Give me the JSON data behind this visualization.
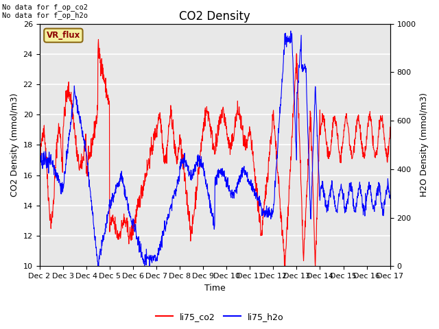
{
  "title": "CO2 Density",
  "xlabel": "Time",
  "ylabel_left": "CO2 Density (mmol/m3)",
  "ylabel_right": "H2O Density (mmol/m3)",
  "ylim_left": [
    10,
    26
  ],
  "ylim_right": [
    0,
    1000
  ],
  "legend_labels": [
    "li75_co2",
    "li75_h2o"
  ],
  "legend_colors": [
    "red",
    "blue"
  ],
  "top_left_text": "No data for f_op_co2\nNo data for f_op_h2o",
  "vr_flux_label": "VR_flux",
  "background_color": "#e8e8e8",
  "xtick_labels": [
    "Dec 2",
    "Dec 3",
    "Dec 4",
    "Dec 5",
    "Dec 6",
    "Dec 7",
    "Dec 8",
    "Dec 9",
    "Dec 10",
    "Dec 11",
    "Dec 12",
    "Dec 13",
    "Dec 14",
    "Dec 15",
    "Dec 16",
    "Dec 17"
  ],
  "title_fontsize": 12,
  "axis_fontsize": 9,
  "tick_fontsize": 8
}
